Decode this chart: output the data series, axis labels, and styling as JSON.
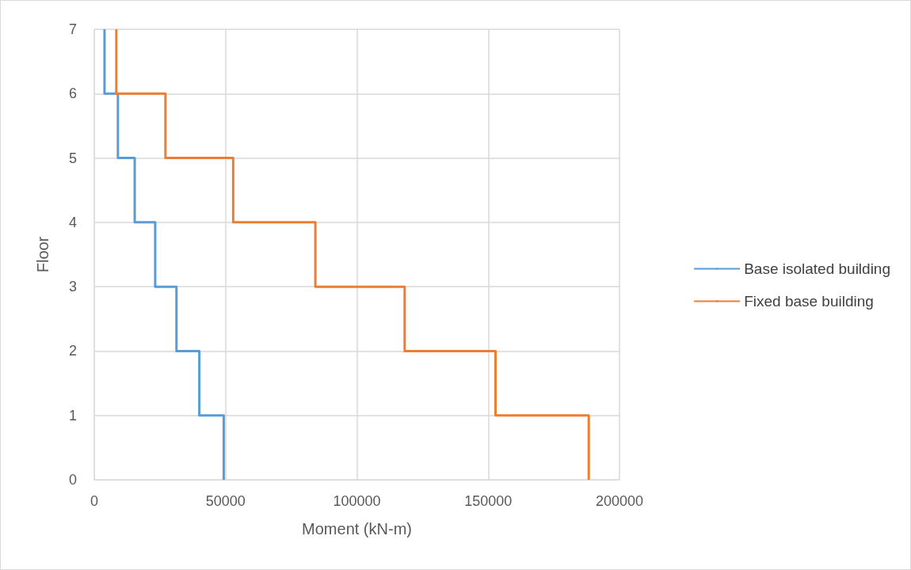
{
  "chart_data": {
    "type": "line",
    "xlabel": "Moment (kN-m)",
    "ylabel": "Floor",
    "xlim": [
      0,
      200000
    ],
    "xticks": [
      0,
      50000,
      100000,
      150000,
      200000
    ],
    "ylim": [
      0,
      7
    ],
    "yticks": [
      0,
      1,
      2,
      3,
      4,
      5,
      6,
      7
    ],
    "grid": true,
    "legend": "right",
    "marker": "none",
    "line_style": "solid",
    "series": [
      {
        "name": "Base isolated building",
        "color": "#5b9bd5",
        "x": [
          49300,
          49300,
          40000,
          40000,
          31300,
          31300,
          23200,
          23200,
          15400,
          15400,
          9000,
          9000,
          3900,
          3900
        ],
        "values": [
          0,
          1,
          1,
          2,
          2,
          3,
          3,
          4,
          4,
          5,
          5,
          6,
          6,
          7
        ]
      },
      {
        "name": "Fixed base building",
        "color": "#ed7d31",
        "x": [
          188300,
          188300,
          152800,
          152800,
          118200,
          118200,
          84200,
          84200,
          52900,
          52900,
          27100,
          27100,
          8400,
          8400
        ],
        "values": [
          0,
          1,
          1,
          2,
          2,
          3,
          3,
          4,
          4,
          5,
          5,
          6,
          6,
          7
        ]
      }
    ]
  }
}
